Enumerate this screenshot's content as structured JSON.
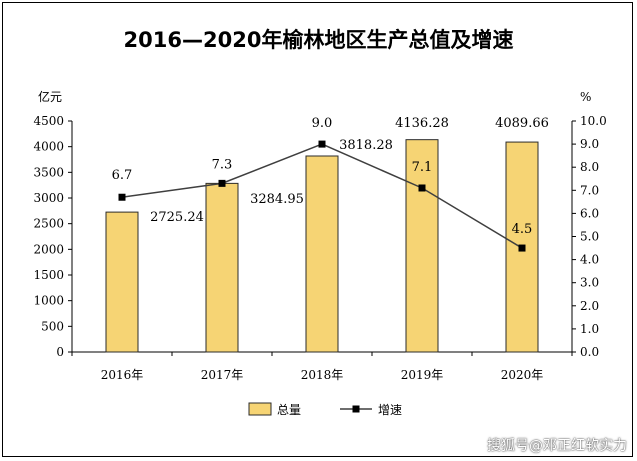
{
  "title": "2016—2020年榆林地区生产总值及增速",
  "watermark": "搜狐号@邓正红软实力",
  "colors": {
    "bar": "#F6D474",
    "bar_stroke": "#2b2b2b",
    "line": "#3f3f3f",
    "marker": "#000000"
  },
  "chart_data": {
    "type": "bar",
    "title": "2016—2020年榆林地区生产总值及增速",
    "categories": [
      "2016年",
      "2017年",
      "2018年",
      "2019年",
      "2020年"
    ],
    "series": [
      {
        "name": "总量",
        "type": "bar",
        "axis": "left",
        "values": [
          2725.24,
          3284.95,
          3818.28,
          4136.28,
          4089.66
        ],
        "labels": [
          "2725.24",
          "3284.95",
          "3818.28",
          "4136.28",
          "4089.66"
        ]
      },
      {
        "name": "增速",
        "type": "line",
        "axis": "right",
        "values": [
          6.7,
          7.3,
          9.0,
          7.1,
          4.5
        ],
        "labels": [
          "6.7",
          "7.3",
          "9.0",
          "7.1",
          "4.5"
        ]
      }
    ],
    "y_left": {
      "unit": "亿元",
      "min": 0,
      "max": 4500,
      "ticks": [
        "0",
        "500",
        "1000",
        "1500",
        "2000",
        "2500",
        "3000",
        "3500",
        "4000",
        "4500"
      ]
    },
    "y_right": {
      "unit": "%",
      "min": 0,
      "max": 10,
      "ticks": [
        "0.0",
        "1.0",
        "2.0",
        "3.0",
        "4.0",
        "5.0",
        "6.0",
        "7.0",
        "8.0",
        "9.0",
        "10.0"
      ]
    },
    "grid": false,
    "legend": "bottom"
  }
}
